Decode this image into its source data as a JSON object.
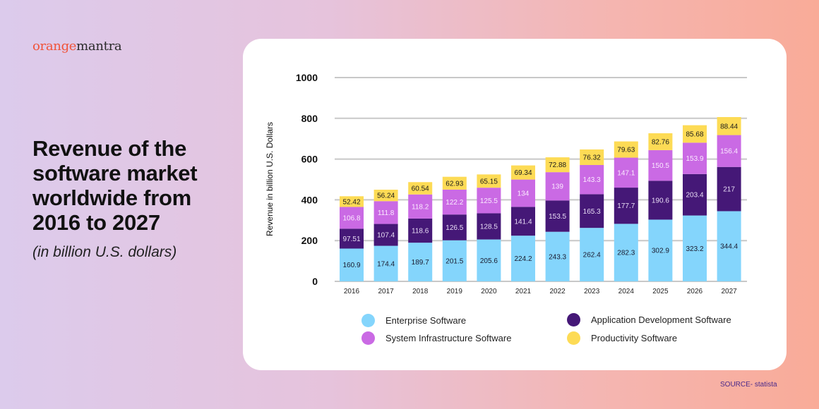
{
  "brand": {
    "part1": "orange",
    "part2": "mantra"
  },
  "heading": {
    "title": "Revenue of the software market worldwide from 2016 to 2027",
    "subtitle": "(in billion U.S. dollars)"
  },
  "source": "SOURCE- statista",
  "chart_data": {
    "type": "bar",
    "stacked": true,
    "ylabel": "Revenue in billion U.S. Dollars",
    "xlabel": "",
    "ylim": [
      0,
      1000
    ],
    "yticks": [
      0,
      200,
      400,
      600,
      800,
      1000
    ],
    "grid": true,
    "legend_position": "bottom",
    "categories": [
      "2016",
      "2017",
      "2018",
      "2019",
      "2020",
      "2021",
      "2022",
      "2023",
      "2024",
      "2025",
      "2026",
      "2027"
    ],
    "series": [
      {
        "name": "Enterprise Software",
        "color": "#84d5fc",
        "label_color": "#1a1a2e",
        "values": [
          160.9,
          174.4,
          189.7,
          201.5,
          205.6,
          224.2,
          243.3,
          262.4,
          282.3,
          302.9,
          323.2,
          344.4
        ]
      },
      {
        "name": "Application Development Software",
        "color": "#451877",
        "label_color": "#e8dcf5",
        "values": [
          97.51,
          107.4,
          118.6,
          126.5,
          128.5,
          141.4,
          153.5,
          165.3,
          177.7,
          190.6,
          203.4,
          217
        ]
      },
      {
        "name": "System Infrastructure Software",
        "color": "#ca6ae4",
        "label_color": "#fbeaff",
        "values": [
          106.8,
          111.8,
          118.2,
          122.2,
          125.5,
          134,
          139,
          143.3,
          147.1,
          150.5,
          153.9,
          156.4
        ]
      },
      {
        "name": "Productivity Software",
        "color": "#fddb55",
        "label_color": "#1a1a1a",
        "values": [
          52.42,
          56.24,
          60.54,
          62.93,
          65.15,
          69.34,
          72.88,
          76.32,
          79.63,
          82.76,
          85.68,
          88.44
        ]
      }
    ]
  }
}
